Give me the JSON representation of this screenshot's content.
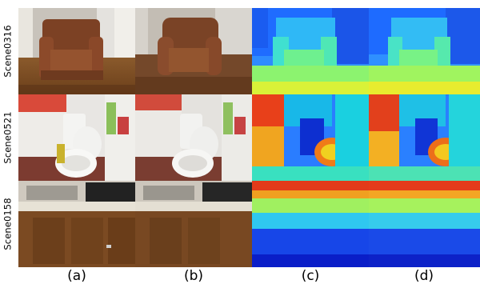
{
  "figure": {
    "rows": [
      {
        "label": "Scene0316"
      },
      {
        "label": "Scene0521"
      },
      {
        "label": "Scene0158"
      }
    ],
    "columns": [
      {
        "label": "(a)"
      },
      {
        "label": "(b)"
      },
      {
        "label": "(c)"
      },
      {
        "label": "(d)"
      }
    ]
  }
}
